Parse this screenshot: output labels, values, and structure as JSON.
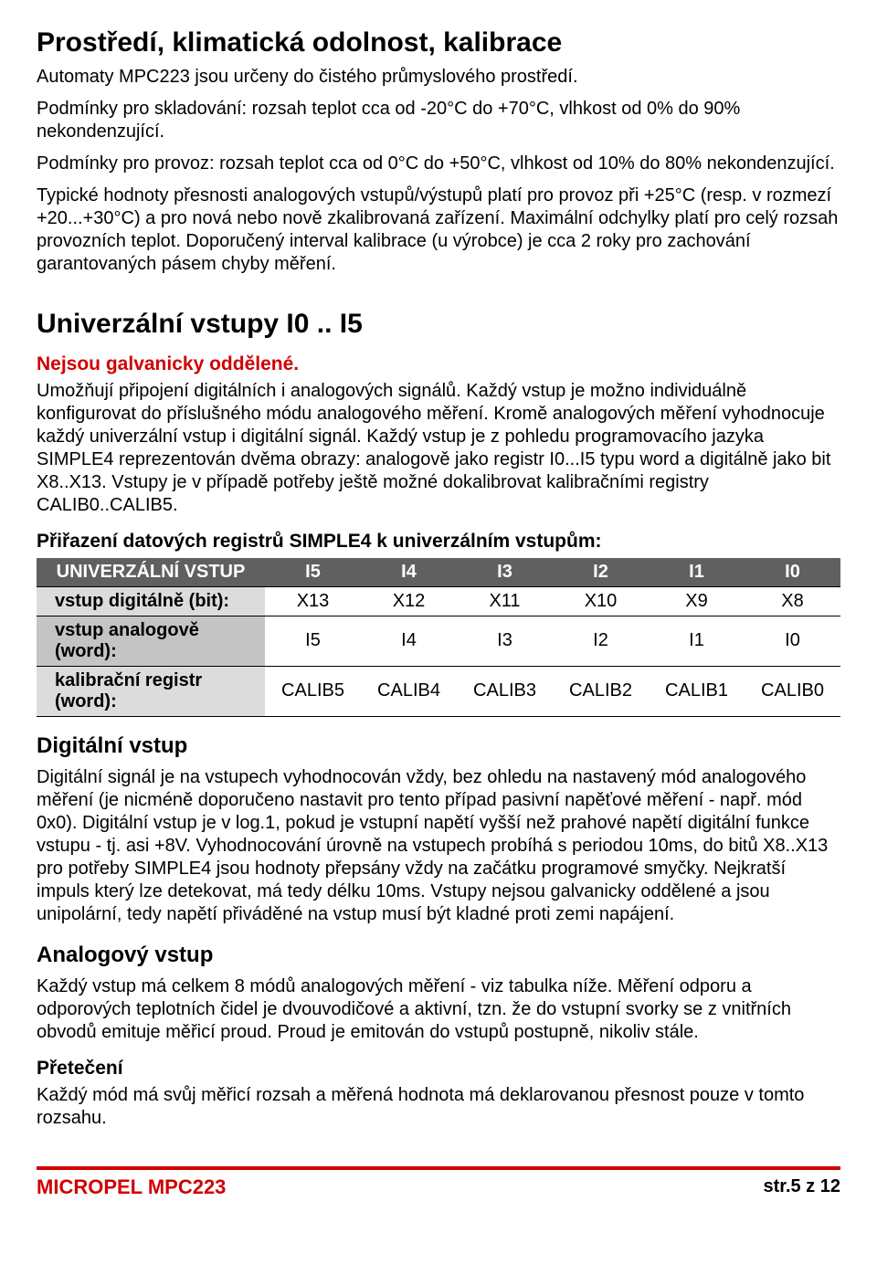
{
  "section1": {
    "title": "Prostředí, klimatická odolnost, kalibrace",
    "p1": "Automaty MPC223 jsou určeny do čistého průmyslového prostředí.",
    "p2": "Podmínky pro skladování: rozsah teplot cca od -20°C do +70°C, vlhkost od 0% do 90% nekondenzující.",
    "p3": "Podmínky pro provoz: rozsah teplot cca od 0°C do +50°C, vlhkost od 10% do 80% nekondenzující.",
    "p4": "Typické hodnoty přesnosti analogových vstupů/výstupů platí pro provoz při +25°C (resp. v rozmezí +20...+30°C) a pro nová nebo nově zkalibrovaná zařízení. Maximální odchylky platí pro celý rozsah provozních teplot. Doporučený interval kalibrace (u výrobce) je cca 2 roky pro zachování garantovaných pásem chyby měření."
  },
  "section2": {
    "title": "Univerzální vstupy I0 .. I5",
    "warn": "Nejsou galvanicky oddělené.",
    "p1": "Umožňují připojení digitálních i analogových signálů. Každý vstup je možno individuálně konfigurovat do příslušného módu analogového měření. Kromě analogových měření vyhodnocuje každý univerzální vstup i digitální signál. Každý vstup je z pohledu programovacího jazyka SIMPLE4 reprezentován dvěma obrazy: analogově jako registr I0...I5 typu word a digitálně jako bit X8..X13. Vstupy je v případě potřeby ještě možné dokalibrovat kalibračními registry CALIB0..CALIB5.",
    "tableTitle": "Přiřazení datových registrů SIMPLE4 k univerzálním vstupům:"
  },
  "table": {
    "headers": [
      "UNIVERZÁLNÍ VSTUP",
      "I5",
      "I4",
      "I3",
      "I2",
      "I1",
      "I0"
    ],
    "rows": [
      {
        "label": "vstup digitálně (bit):",
        "cells": [
          "X13",
          "X12",
          "X11",
          "X10",
          "X9",
          "X8"
        ],
        "bg": "rowlabel-light"
      },
      {
        "label": "vstup analogově (word):",
        "cells": [
          "I5",
          "I4",
          "I3",
          "I2",
          "I1",
          "I0"
        ],
        "bg": "rowlabel-mid"
      },
      {
        "label": "kalibrační registr (word):",
        "cells": [
          "CALIB5",
          "CALIB4",
          "CALIB3",
          "CALIB2",
          "CALIB1",
          "CALIB0"
        ],
        "bg": "rowlabel-light"
      }
    ]
  },
  "section3": {
    "title": "Digitální vstup",
    "p1": "Digitální signál je na vstupech vyhodnocován vždy, bez ohledu na nastavený mód analogového měření (je nicméně doporučeno nastavit pro tento případ pasivní napěťové měření - např. mód 0x0). Digitální vstup je v log.1, pokud je vstupní napětí vyšší než prahové napětí digitální funkce vstupu - tj. asi +8V. Vyhodnocování úrovně na vstupech probíhá s periodou 10ms, do bitů X8..X13 pro potřeby SIMPLE4 jsou hodnoty přepsány vždy na začátku programové smyčky. Nejkratší impuls který lze detekovat, má tedy délku 10ms. Vstupy nejsou galvanicky oddělené a jsou unipolární, tedy napětí přiváděné na vstup musí být kladné proti zemi napájení."
  },
  "section4": {
    "title": "Analogový vstup",
    "p1": "Každý vstup má celkem 8 módů analogových měření - viz tabulka níže. Měření odporu a odporových teplotních čidel je dvouvodičové a aktivní, tzn. že do vstupní svorky se z vnitřních obvodů emituje měřicí proud. Proud je emitován do vstupů postupně, nikoliv stále.",
    "sub": "Přetečení",
    "p2": "Každý mód má svůj měřicí rozsah a měřená hodnota má deklarovanou přesnost pouze v tomto rozsahu."
  },
  "footer": {
    "left": "MICROPEL MPC223",
    "right": "str.5 z 12"
  },
  "colors": {
    "accent": "#d10000",
    "tableHeaderBg": "#606060",
    "rowLight": "#dcdcdc",
    "rowMid": "#c4c4c4"
  }
}
